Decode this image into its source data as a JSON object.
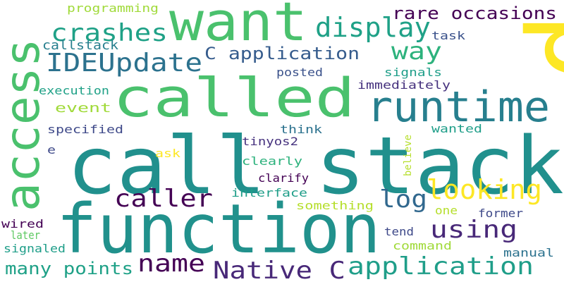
{
  "word_cloud": {
    "colors": {
      "yellow": "#fde725",
      "lime": "#a0da39",
      "green": "#4ac16d",
      "teal": "#1fa187",
      "cyan": "#277f8e",
      "blue": "#365c8d",
      "indigo": "#46327e",
      "purple": "#440154"
    },
    "words": [
      {
        "text": "call stack",
        "color": "#21908d"
      },
      {
        "text": "function",
        "color": "#21918c"
      },
      {
        "text": "want",
        "color": "#4ac16d"
      },
      {
        "text": "called",
        "color": "#4ac16d"
      },
      {
        "text": "access",
        "color": "#4ac16d"
      },
      {
        "text": "p",
        "color": "#fde725"
      },
      {
        "text": "runtime",
        "color": "#277f8e"
      },
      {
        "text": "display",
        "color": "#1fa187"
      },
      {
        "text": "crashes",
        "color": "#1fa187"
      },
      {
        "text": "IDEUpdate",
        "color": "#2c728e"
      },
      {
        "text": "rare occasions",
        "color": "#440154"
      },
      {
        "text": "way",
        "color": "#2db27d"
      },
      {
        "text": "C application",
        "color": "#365c8d"
      },
      {
        "text": "callstack",
        "color": "#277f8e"
      },
      {
        "text": "task",
        "color": "#3b528b"
      },
      {
        "text": "programming",
        "color": "#a0da39"
      },
      {
        "text": "posted",
        "color": "#3b528b"
      },
      {
        "text": "signals",
        "color": "#1f9e89"
      },
      {
        "text": "execution",
        "color": "#1fa187"
      },
      {
        "text": "immediately",
        "color": "#46327e"
      },
      {
        "text": "event",
        "color": "#a0da39"
      },
      {
        "text": "specified",
        "color": "#3e4989"
      },
      {
        "text": "think",
        "color": "#2c728e"
      },
      {
        "text": "wanted",
        "color": "#1f9e89"
      },
      {
        "text": "tinyos2",
        "color": "#46327e"
      },
      {
        "text": "e",
        "color": "#3e4989"
      },
      {
        "text": "ask",
        "color": "#fde725"
      },
      {
        "text": "clearly",
        "color": "#2db27d"
      },
      {
        "text": "believe",
        "color": "#b5de2b"
      },
      {
        "text": "caller",
        "color": "#440154"
      },
      {
        "text": "log",
        "color": "#31688e"
      },
      {
        "text": "looking",
        "color": "#fde725"
      },
      {
        "text": "clarify",
        "color": "#440154"
      },
      {
        "text": "interface",
        "color": "#1f9e89"
      },
      {
        "text": "something",
        "color": "#b5de2b"
      },
      {
        "text": "using",
        "color": "#482878"
      },
      {
        "text": "wired",
        "color": "#440154"
      },
      {
        "text": "later",
        "color": "#5ec962"
      },
      {
        "text": "signaled",
        "color": "#1f9e89"
      },
      {
        "text": "name",
        "color": "#440154"
      },
      {
        "text": "Native C",
        "color": "#482878"
      },
      {
        "text": "application",
        "color": "#1f9e89"
      },
      {
        "text": "one",
        "color": "#b5de2b"
      },
      {
        "text": "former",
        "color": "#3e4989"
      },
      {
        "text": "tend",
        "color": "#3e4989"
      },
      {
        "text": "command",
        "color": "#a0da39"
      },
      {
        "text": "manual",
        "color": "#2c728e"
      },
      {
        "text": "many points",
        "color": "#1fa187"
      }
    ]
  }
}
